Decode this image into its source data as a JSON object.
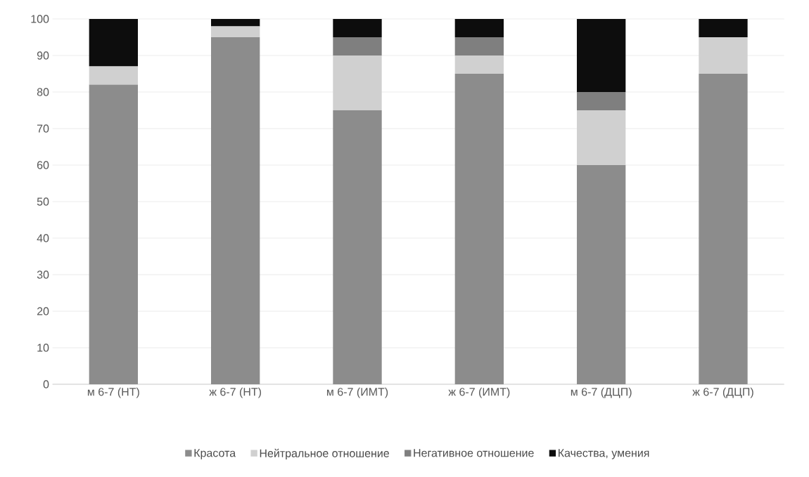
{
  "chart_data": {
    "type": "bar",
    "stacked": true,
    "grid": "y",
    "legend": "bottom",
    "categories": [
      "м 6-7 (НТ)",
      "ж 6-7 (НТ)",
      "м 6-7 (ИМТ)",
      "ж 6-7 (ИМТ)",
      "м 6-7 (ДЦП)",
      "ж 6-7 (ДЦП)"
    ],
    "ylim": [
      0,
      100
    ],
    "yticks": [
      0,
      10,
      20,
      30,
      40,
      50,
      60,
      70,
      80,
      90,
      100
    ],
    "series": [
      {
        "name": "Красота",
        "color": "#8c8c8c",
        "values": [
          82,
          95,
          75,
          85,
          60,
          85
        ]
      },
      {
        "name": "Нейтральное отношение",
        "color": "#d0d0d0",
        "values": [
          5,
          3,
          15,
          5,
          15,
          10
        ]
      },
      {
        "name": "Негативное отношение",
        "color": "#7f7f7f",
        "values": [
          0,
          0,
          5,
          5,
          5,
          0
        ]
      },
      {
        "name": "Качества, умения",
        "color": "#0d0d0d",
        "values": [
          13,
          2,
          5,
          5,
          20,
          5
        ]
      }
    ]
  }
}
